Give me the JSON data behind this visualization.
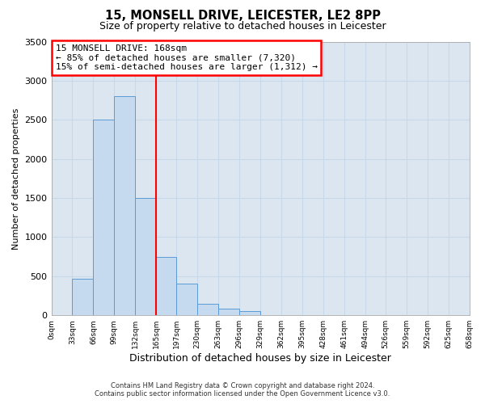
{
  "title_line1": "15, MONSELL DRIVE, LEICESTER, LE2 8PP",
  "title_line2": "Size of property relative to detached houses in Leicester",
  "xlabel": "Distribution of detached houses by size in Leicester",
  "ylabel": "Number of detached properties",
  "bin_edges": [
    0,
    33,
    66,
    99,
    132,
    165,
    197,
    230,
    263,
    296,
    329,
    362,
    395,
    428,
    461,
    494,
    526,
    559,
    592,
    625,
    658
  ],
  "bin_labels": [
    "0sqm",
    "33sqm",
    "66sqm",
    "99sqm",
    "132sqm",
    "165sqm",
    "197sqm",
    "230sqm",
    "263sqm",
    "296sqm",
    "329sqm",
    "362sqm",
    "395sqm",
    "428sqm",
    "461sqm",
    "494sqm",
    "526sqm",
    "559sqm",
    "592sqm",
    "625sqm",
    "658sqm"
  ],
  "counts": [
    5,
    470,
    2500,
    2800,
    1500,
    750,
    400,
    150,
    80,
    50,
    0,
    0,
    0,
    0,
    0,
    0,
    0,
    0,
    0,
    0
  ],
  "bar_facecolor": "#c5d9ef",
  "bar_edgecolor": "#5b9bd5",
  "grid_color": "#c8d8eb",
  "background_color": "#dce6f1",
  "vline_x": 165,
  "vline_color": "red",
  "annotation_title": "15 MONSELL DRIVE: 168sqm",
  "annotation_line1": "← 85% of detached houses are smaller (7,320)",
  "annotation_line2": "15% of semi-detached houses are larger (1,312) →",
  "annotation_box_edgecolor": "red",
  "ylim": [
    0,
    3500
  ],
  "yticks": [
    0,
    500,
    1000,
    1500,
    2000,
    2500,
    3000,
    3500
  ],
  "footer1": "Contains HM Land Registry data © Crown copyright and database right 2024.",
  "footer2": "Contains public sector information licensed under the Open Government Licence v3.0."
}
